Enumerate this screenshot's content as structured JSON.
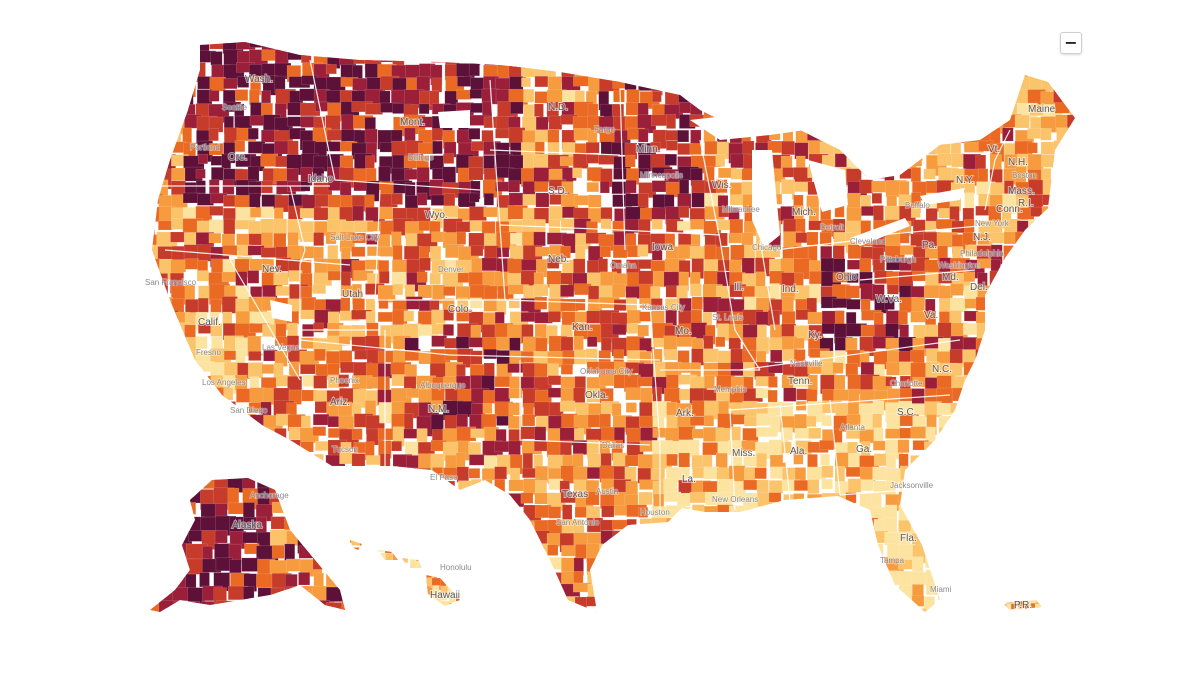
{
  "map": {
    "region": "United States counties",
    "legend_visible": false,
    "palette": {
      "lowest": "#fde3a0",
      "low": "#fbc46b",
      "medium": "#f79b3f",
      "high": "#ea6a24",
      "higher": "#c73b2b",
      "very_high": "#9c1f3a",
      "highest": "#5e1138",
      "no_data": "#ffffff",
      "state_border": "#ffffff"
    }
  },
  "zoom_control": {
    "label": "−",
    "icon": "minus-icon"
  },
  "state_labels": [
    "Wash.",
    "Ore.",
    "Idaho",
    "Mont.",
    "Wyo.",
    "Nev.",
    "Calif.",
    "Utah",
    "Colo.",
    "Ariz.",
    "N.M.",
    "N.D.",
    "S.D.",
    "Neb.",
    "Kan.",
    "Okla.",
    "Texas",
    "Minn.",
    "Iowa",
    "Mo.",
    "Ark.",
    "La.",
    "Wis.",
    "Ill.",
    "Ind.",
    "Mich.",
    "Ohio",
    "Ky.",
    "Tenn.",
    "Miss.",
    "Ala.",
    "Ga.",
    "Fla.",
    "S.C.",
    "N.C.",
    "Va.",
    "W.Va.",
    "Pa.",
    "N.Y.",
    "Md.",
    "Del.",
    "N.J.",
    "Conn.",
    "R.I.",
    "Mass.",
    "Vt.",
    "N.H.",
    "Maine",
    "Alaska",
    "Hawaii",
    "P.R."
  ],
  "city_labels": [
    "Seattle",
    "Portland",
    "San Francisco",
    "Fresno",
    "Los Angeles",
    "San Diego",
    "Las Vegas",
    "Phoenix",
    "Tucson",
    "Salt Lake City",
    "Denver",
    "Albuquerque",
    "El Paso",
    "Dallas",
    "Houston",
    "San Antonio",
    "Austin",
    "Oklahoma City",
    "Kansas City",
    "Omaha",
    "Minneapolis",
    "Chicago",
    "Detroit",
    "Milwaukee",
    "St. Louis",
    "Nashville",
    "Memphis",
    "Atlanta",
    "Charlotte",
    "Jacksonville",
    "Tampa",
    "Miami",
    "New Orleans",
    "Washington",
    "Philadelphia",
    "New York",
    "Boston",
    "Pittsburgh",
    "Cleveland",
    "Buffalo",
    "Fargo",
    "Billings",
    "Anchorage",
    "Honolulu"
  ]
}
